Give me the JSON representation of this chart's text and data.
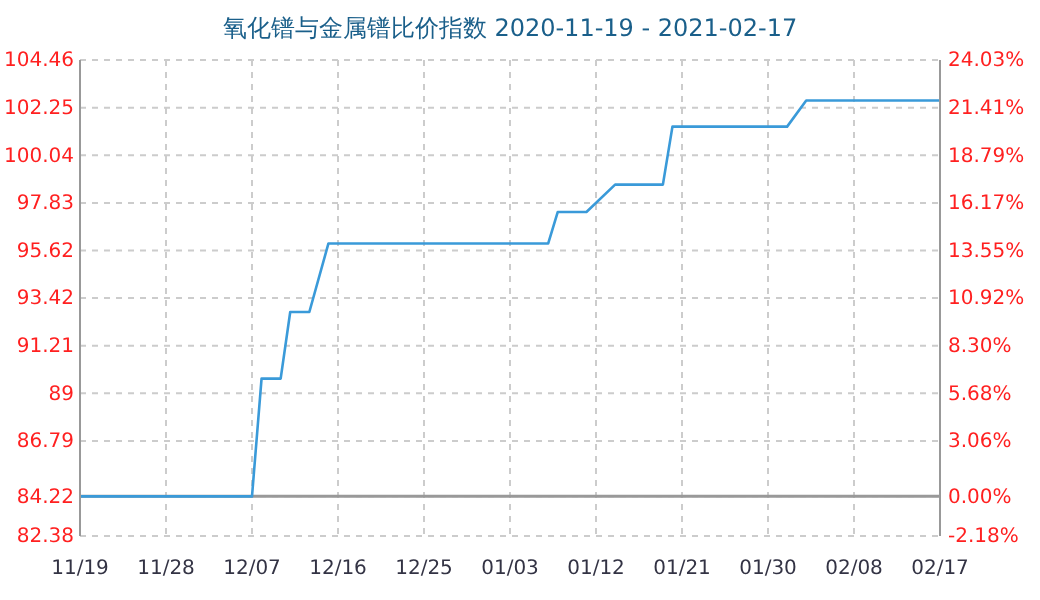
{
  "chart_data": {
    "type": "line",
    "title": "氧化镨与金属镨比价指数 2020-11-19 - 2021-02-17",
    "x": [
      "2020-11-19",
      "2020-12-07",
      "2020-12-08",
      "2020-12-10",
      "2020-12-11",
      "2020-12-13",
      "2020-12-15",
      "2021-01-07",
      "2021-01-08",
      "2021-01-11",
      "2021-01-14",
      "2021-01-19",
      "2021-01-20",
      "2021-02-01",
      "2021-02-03",
      "2021-02-17"
    ],
    "series": [
      {
        "color": "#3a9ad9",
        "values": [
          84.22,
          84.22,
          89.68,
          89.68,
          92.77,
          92.77,
          95.95,
          95.95,
          97.41,
          97.41,
          98.68,
          98.68,
          101.37,
          101.37,
          102.58,
          102.58
        ]
      }
    ],
    "xlim": [
      "2020-11-19",
      "2021-02-17"
    ],
    "xticks": [
      {
        "value": "2020-11-19",
        "label": "11/19"
      },
      {
        "value": "2020-11-28",
        "label": "11/28"
      },
      {
        "value": "2020-12-07",
        "label": "12/07"
      },
      {
        "value": "2020-12-16",
        "label": "12/16"
      },
      {
        "value": "2020-12-25",
        "label": "12/25"
      },
      {
        "value": "2021-01-03",
        "label": "01/03"
      },
      {
        "value": "2021-01-12",
        "label": "01/12"
      },
      {
        "value": "2021-01-21",
        "label": "01/21"
      },
      {
        "value": "2021-01-30",
        "label": "01/30"
      },
      {
        "value": "2021-02-08",
        "label": "02/08"
      },
      {
        "value": "2021-02-17",
        "label": "02/17"
      }
    ],
    "ylim": [
      82.38,
      104.46
    ],
    "yticks": [
      82.38,
      84.22,
      86.79,
      89,
      91.21,
      93.42,
      95.62,
      97.83,
      100.04,
      102.25,
      104.46
    ],
    "y2lim": [
      -2.18,
      24.03
    ],
    "y2ticks": [
      {
        "value": -2.18,
        "label": "-2.18%"
      },
      {
        "value": 0,
        "label": "0.00%"
      },
      {
        "value": 3.06,
        "label": "3.06%"
      },
      {
        "value": 5.68,
        "label": "5.68%"
      },
      {
        "value": 8.3,
        "label": "8.30%"
      },
      {
        "value": 10.92,
        "label": "10.92%"
      },
      {
        "value": 13.55,
        "label": "13.55%"
      },
      {
        "value": 16.17,
        "label": "16.17%"
      },
      {
        "value": 18.79,
        "label": "18.79%"
      },
      {
        "value": 21.41,
        "label": "21.41%"
      },
      {
        "value": 24.03,
        "label": "24.03%"
      }
    ],
    "ref_lines": [
      {
        "axis": "y",
        "value": 84.22,
        "color": "#999999"
      }
    ],
    "grid": true
  }
}
